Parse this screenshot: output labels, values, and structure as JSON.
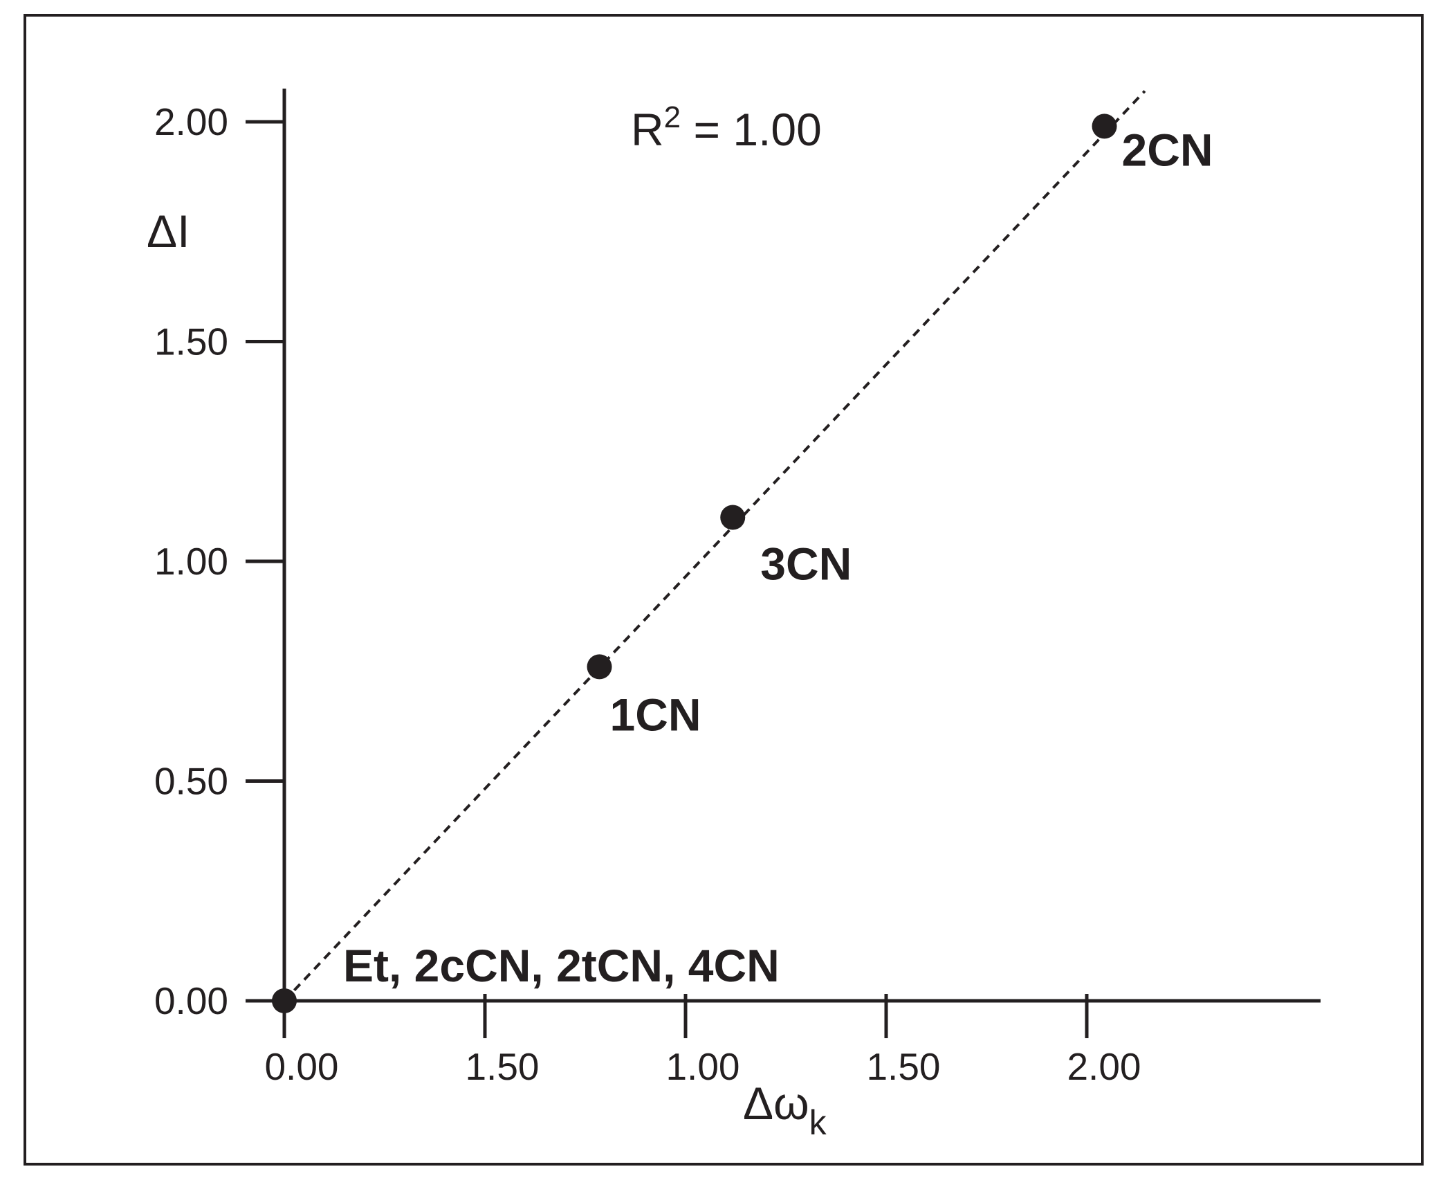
{
  "chart_data": {
    "type": "scatter",
    "title": "",
    "xlabel": "Δω",
    "xlabel_sub": "k",
    "ylabel": "ΔI",
    "annotation": {
      "text": "R",
      "sup": "2",
      "rest": " = 1.00"
    },
    "x_ticks": [
      "0.00",
      "1.50",
      "1.00",
      "1.50",
      "2.00"
    ],
    "y_ticks": [
      "0.00",
      "0.50",
      "1.00",
      "1.50",
      "2.00"
    ],
    "xlim": [
      0,
      2.55
    ],
    "ylim": [
      0,
      2.05
    ],
    "grid": false,
    "points": [
      {
        "x": 0.0,
        "y": 0.0,
        "label": "Et, 2cCN, 2tCN, 4CN"
      },
      {
        "x": 0.78,
        "y": 0.76,
        "label": "1CN"
      },
      {
        "x": 1.11,
        "y": 1.1,
        "label": "3CN"
      },
      {
        "x": 2.03,
        "y": 1.99,
        "label": "2CN"
      }
    ],
    "fit_line": {
      "x": [
        0.0,
        2.13
      ],
      "y": [
        0.0,
        2.07
      ],
      "style": "dashed"
    }
  },
  "colors": {
    "ink": "#231f20",
    "background": "#ffffff"
  }
}
